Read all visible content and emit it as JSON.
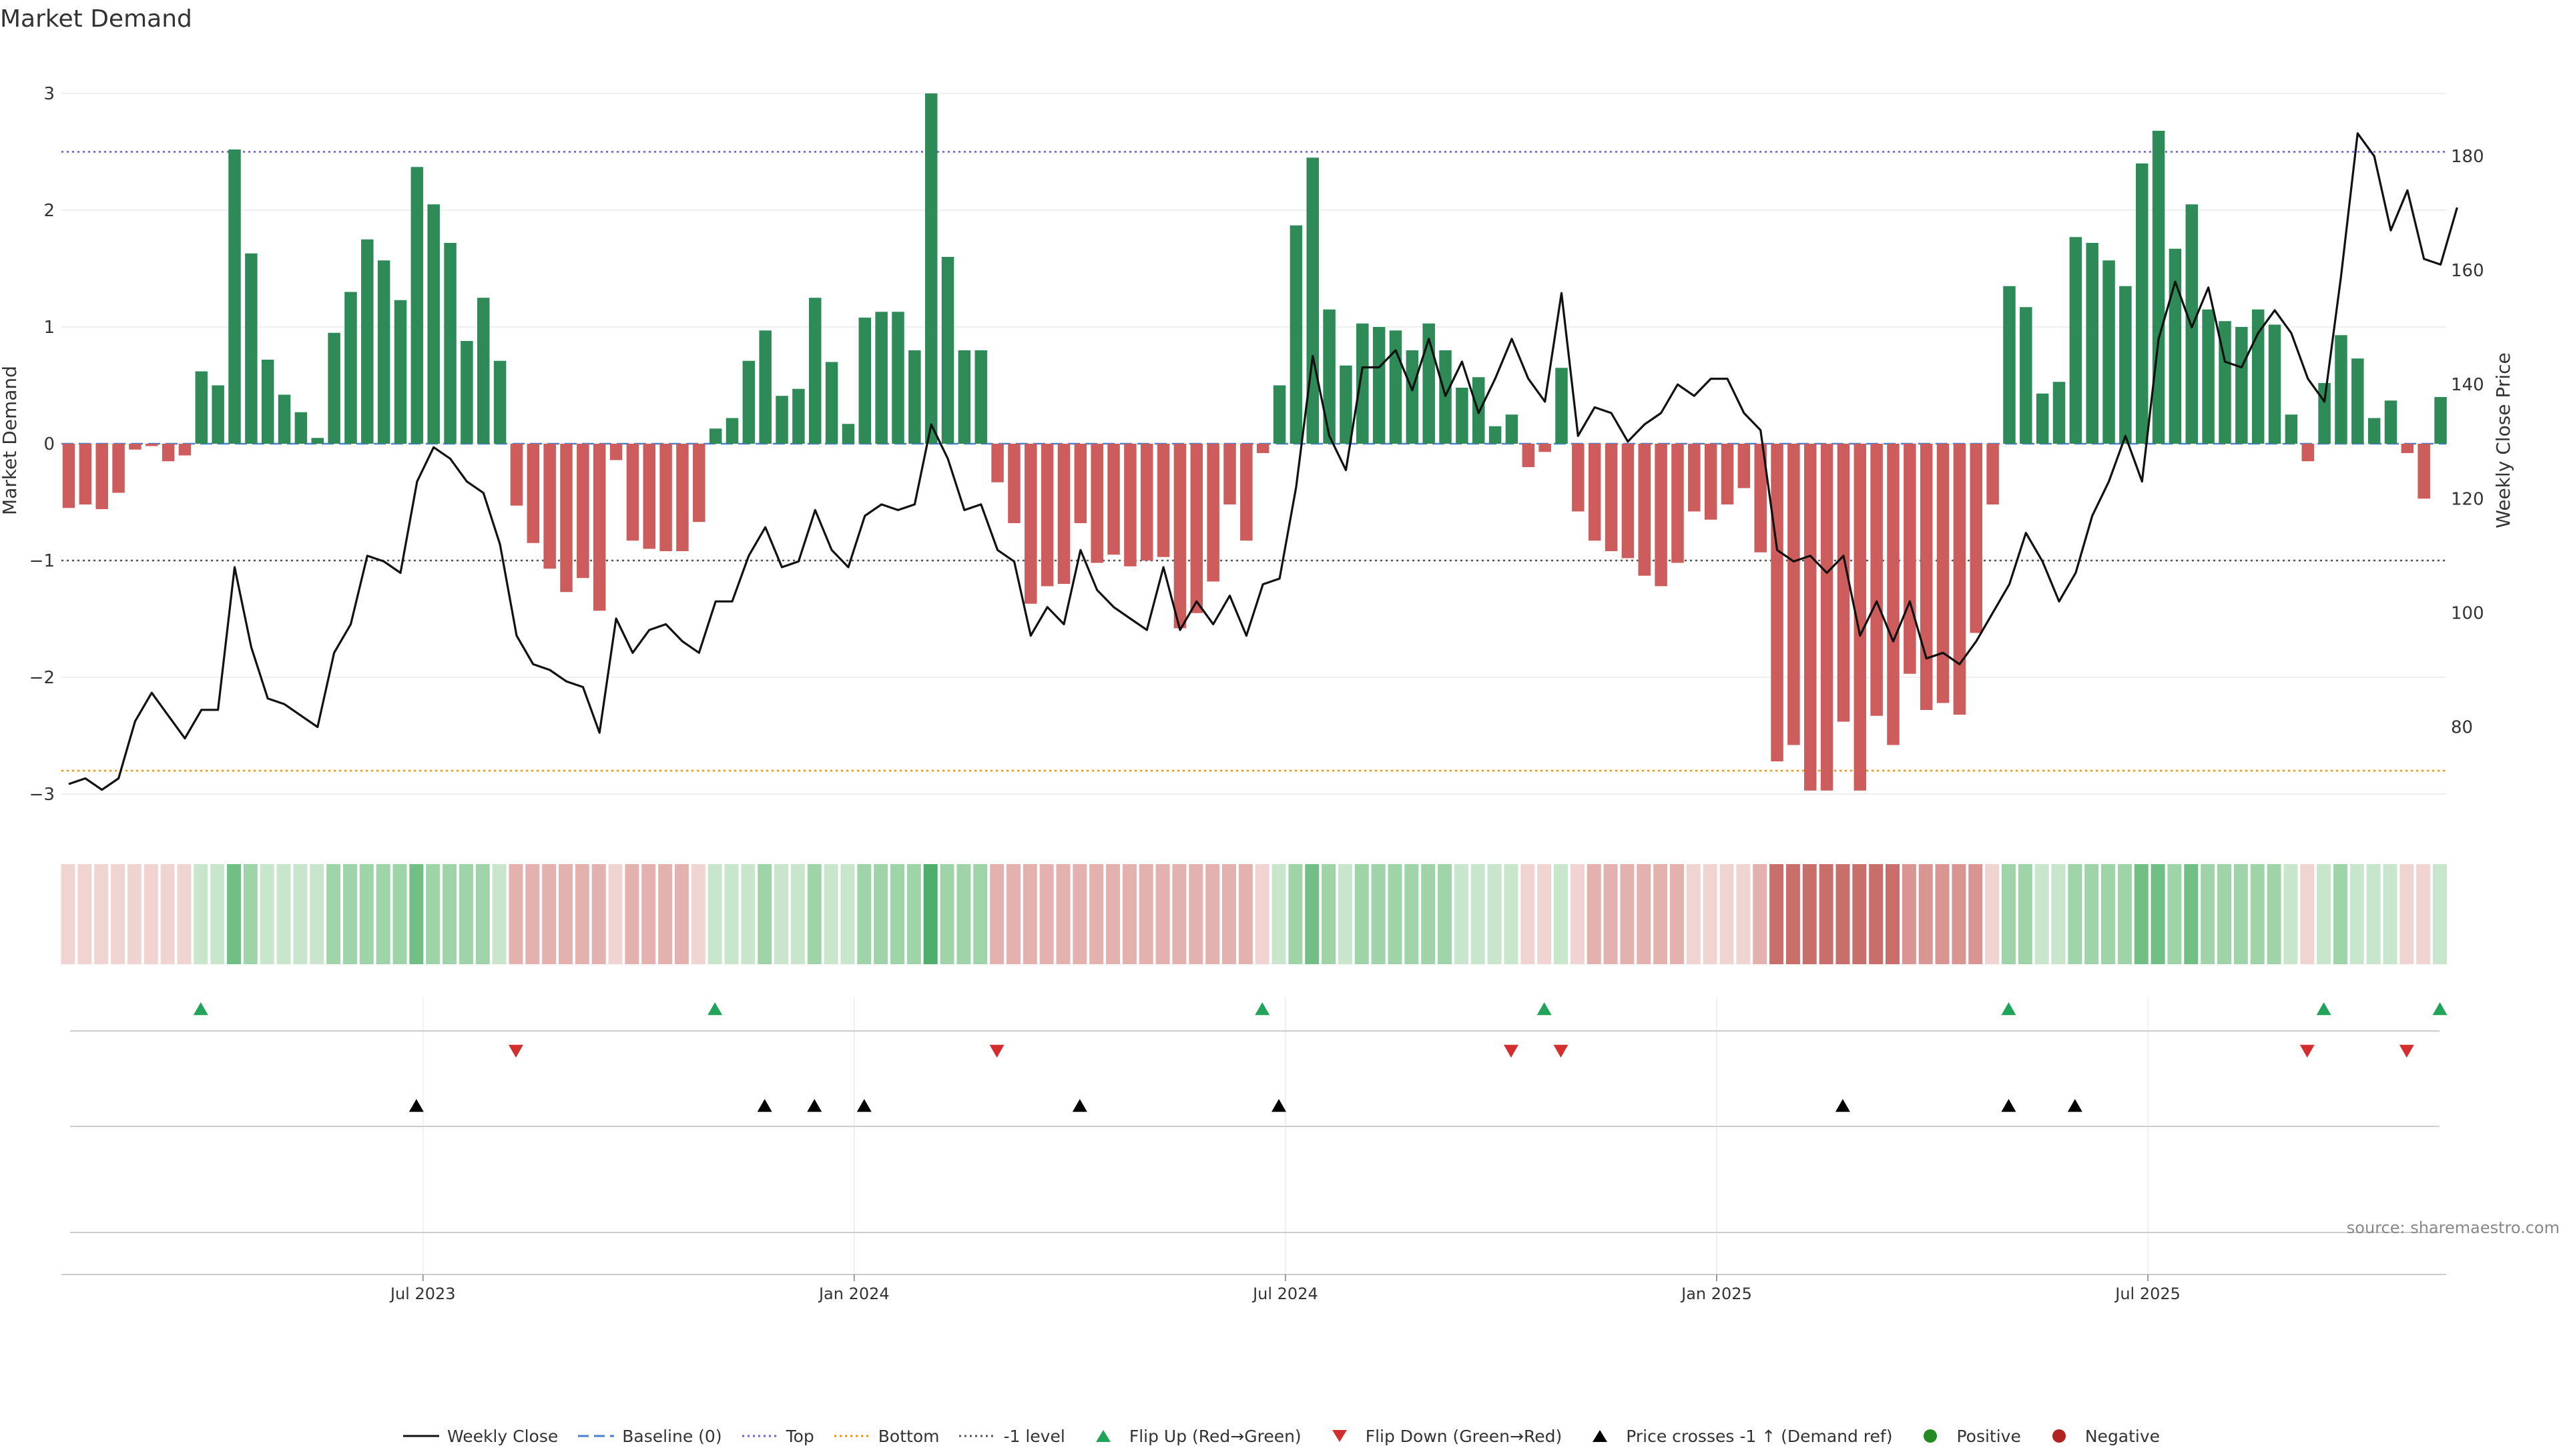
{
  "chart_data": {
    "type": "bar",
    "title": "Market Demand",
    "ylabel": "Market Demand",
    "y2label": "Weekly Close Price",
    "ylim": [
      -3.3,
      3.2
    ],
    "y2lim": [
      67,
      193
    ],
    "yticks": [
      3,
      2,
      1,
      0,
      -1,
      -2,
      -3
    ],
    "ytick_labels": [
      "3",
      "2",
      "1",
      "0",
      "−1",
      "−2",
      "−3"
    ],
    "y2ticks": [
      180,
      160,
      140,
      120,
      100,
      80
    ],
    "y2tick_labels": [
      "180",
      "160",
      "140",
      "120",
      "100",
      "80"
    ],
    "xticks": [
      {
        "index": 22,
        "label": "Jul 2023"
      },
      {
        "index": 48,
        "label": "Jan 2024"
      },
      {
        "index": 74,
        "label": "Jul 2024"
      },
      {
        "index": 100,
        "label": "Jan 2025"
      },
      {
        "index": 126,
        "label": "Jul 2025"
      }
    ],
    "reference_lines": {
      "top": 2.5,
      "bottom": -2.8,
      "minus_one": -1,
      "baseline": 0
    },
    "demand": [
      -0.55,
      -0.52,
      -0.56,
      -0.42,
      -0.05,
      -0.02,
      -0.15,
      -0.1,
      0.62,
      0.5,
      2.52,
      1.63,
      0.72,
      0.42,
      0.27,
      0.05,
      0.95,
      1.3,
      1.75,
      1.57,
      1.23,
      2.37,
      2.05,
      1.72,
      0.88,
      1.25,
      0.71,
      -0.53,
      -0.85,
      -1.07,
      -1.27,
      -1.15,
      -1.43,
      -0.14,
      -0.83,
      -0.9,
      -0.92,
      -0.92,
      -0.67,
      0.13,
      0.22,
      0.71,
      0.97,
      0.41,
      0.47,
      1.25,
      0.7,
      0.17,
      1.08,
      1.13,
      1.13,
      0.8,
      3.0,
      1.6,
      0.8,
      0.8,
      -0.33,
      -0.68,
      -1.37,
      -1.22,
      -1.2,
      -0.68,
      -1.02,
      -0.95,
      -1.05,
      -1.0,
      -0.97,
      -1.58,
      -1.45,
      -1.18,
      -0.52,
      -0.83,
      -0.08,
      0.5,
      1.87,
      2.45,
      1.15,
      0.67,
      1.03,
      1.0,
      0.97,
      0.8,
      1.03,
      0.8,
      0.48,
      0.57,
      0.15,
      0.25,
      -0.2,
      -0.07,
      0.65,
      -0.58,
      -0.83,
      -0.92,
      -0.98,
      -1.13,
      -1.22,
      -1.02,
      -0.58,
      -0.65,
      -0.52,
      -0.38,
      -0.93,
      -2.72,
      -2.58,
      -2.97,
      -2.97,
      -2.38,
      -2.97,
      -2.33,
      -2.58,
      -1.97,
      -2.28,
      -2.22,
      -2.32,
      -1.62,
      -0.52,
      1.35,
      1.17,
      0.43,
      0.53,
      1.77,
      1.72,
      1.57,
      1.35,
      2.4,
      2.68,
      1.67,
      2.05,
      1.15,
      1.05,
      1.0,
      1.15,
      1.02,
      0.25,
      -0.15,
      0.52,
      0.93,
      0.73,
      0.22,
      0.37,
      -0.08,
      -0.47,
      0.4
    ],
    "price": [
      70,
      71,
      69,
      71,
      81,
      86,
      82,
      78,
      83,
      83,
      108,
      94,
      85,
      84,
      82,
      80,
      93,
      98,
      110,
      109,
      107,
      123,
      129,
      127,
      123,
      121,
      112,
      96,
      91,
      90,
      88,
      87,
      79,
      99,
      93,
      97,
      98,
      95,
      93,
      102,
      102,
      110,
      115,
      108,
      109,
      118,
      111,
      108,
      117,
      119,
      118,
      119,
      133,
      127,
      118,
      119,
      111,
      109,
      96,
      101,
      98,
      111,
      104,
      101,
      99,
      97,
      108,
      97,
      102,
      98,
      103,
      96,
      105,
      106,
      122,
      145,
      131,
      125,
      143,
      143,
      146,
      139,
      148,
      138,
      144,
      135,
      141,
      148,
      141,
      137,
      156,
      131,
      136,
      135,
      130,
      133,
      135,
      140,
      138,
      141,
      141,
      135,
      132,
      111,
      109,
      110,
      107,
      110,
      96,
      102,
      95,
      102,
      92,
      93,
      91,
      95,
      100,
      105,
      114,
      109,
      102,
      107,
      117,
      123,
      131,
      123,
      148,
      158,
      150,
      157,
      144,
      143,
      149,
      153,
      149,
      141,
      137,
      159,
      184,
      180,
      167,
      174,
      162,
      161,
      171
    ],
    "shading_levels": [
      -1,
      -1,
      -1,
      -1,
      -1,
      -1,
      -1,
      -1,
      1,
      1,
      3,
      2,
      1,
      1,
      1,
      1,
      2,
      2,
      2,
      2,
      2,
      3,
      2,
      2,
      2,
      2,
      1,
      -2,
      -2,
      -2,
      -2,
      -2,
      -2,
      -1,
      -2,
      -2,
      -2,
      -2,
      -1,
      1,
      1,
      1,
      2,
      1,
      1,
      2,
      1,
      1,
      2,
      2,
      2,
      2,
      4,
      2,
      2,
      2,
      -2,
      -2,
      -2,
      -2,
      -2,
      -2,
      -2,
      -2,
      -2,
      -2,
      -2,
      -2,
      -2,
      -2,
      -2,
      -2,
      -1,
      1,
      2,
      3,
      2,
      1,
      2,
      2,
      2,
      2,
      2,
      2,
      1,
      1,
      1,
      1,
      -1,
      -1,
      1,
      -1,
      -2,
      -2,
      -2,
      -2,
      -2,
      -2,
      -1,
      -1,
      -1,
      -1,
      -2,
      -4,
      -4,
      -4,
      -4,
      -4,
      -4,
      -4,
      -4,
      -3,
      -3,
      -3,
      -3,
      -3,
      -1,
      2,
      2,
      1,
      1,
      2,
      2,
      2,
      2,
      3,
      3,
      2,
      3,
      2,
      2,
      2,
      2,
      2,
      1,
      -1,
      1,
      2,
      1,
      1,
      1,
      -1,
      -1,
      1
    ],
    "markers": {
      "flip_up": [
        8,
        39,
        72,
        89,
        117,
        136,
        143
      ],
      "flip_down": [
        27,
        56,
        87,
        90,
        135,
        141
      ],
      "price_cross": [
        21,
        42,
        45,
        48,
        61,
        73,
        107,
        117,
        121
      ]
    },
    "source_note": "source: sharemaestro.com",
    "legend": [
      {
        "key": "weekly_close",
        "label": "Weekly Close"
      },
      {
        "key": "baseline",
        "label": "Baseline (0)"
      },
      {
        "key": "top",
        "label": "Top"
      },
      {
        "key": "bottom",
        "label": "Bottom"
      },
      {
        "key": "minus_one",
        "label": "-1 level"
      },
      {
        "key": "flip_up",
        "label": "Flip Up (Red→Green)"
      },
      {
        "key": "flip_down",
        "label": "Flip Down (Green→Red)"
      },
      {
        "key": "price_cross",
        "label": "Price crosses -1 ↑ (Demand ref)"
      },
      {
        "key": "positive",
        "label": "Positive"
      },
      {
        "key": "negative",
        "label": "Negative"
      }
    ],
    "colors": {
      "positive": "#2e8b57",
      "negative": "#cd5c5c",
      "price": "#111111",
      "top": "#6a5acd",
      "bottom": "#e69020",
      "minus_one": "#555555",
      "baseline": "#4a7fd0",
      "flip_up": "#22a35a",
      "flip_down": "#d32f2f",
      "cross": "#000000",
      "legend_positive": "#228b22",
      "legend_negative": "#b22222"
    }
  }
}
